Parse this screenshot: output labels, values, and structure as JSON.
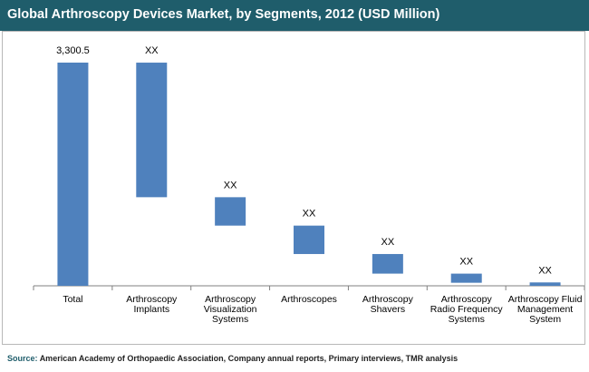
{
  "title": "Global Arthroscopy Devices Market, by Segments, 2012 (USD Million)",
  "source": {
    "label": "Source:",
    "text": "American Academy  of Orthopaedic Association, Company annual reports, Primary interviews, TMR analysis"
  },
  "colors": {
    "title_bg": "#1f5d6b",
    "bar": "#4f81bd",
    "axis": "#808080"
  },
  "chart_data": {
    "type": "bar",
    "subtype": "waterfall",
    "title": "Global Arthroscopy Devices Market, by Segments, 2012 (USD Million)",
    "ylabel": "USD Million",
    "xlabel": "",
    "ylim": [
      0,
      3300.5
    ],
    "grid": false,
    "categories": [
      [
        "Total"
      ],
      [
        "Arthroscopy",
        "Implants"
      ],
      [
        "Arthroscopy",
        "Visualization",
        "Systems"
      ],
      [
        "Arthroscopes"
      ],
      [
        "Arthroscopy",
        "Shavers"
      ],
      [
        "Arthroscopy",
        "Radio Frequency",
        "Systems"
      ],
      [
        "Arthroscopy Fluid",
        "Management",
        "System"
      ]
    ],
    "values": [
      3300.5,
      1990,
      420,
      420,
      290,
      135,
      50
    ],
    "bases": [
      0,
      1310,
      890,
      470,
      180,
      45,
      0
    ],
    "labels": [
      "3,300.5",
      "XX",
      "XX",
      "XX",
      "XX",
      "XX",
      "XX"
    ]
  }
}
